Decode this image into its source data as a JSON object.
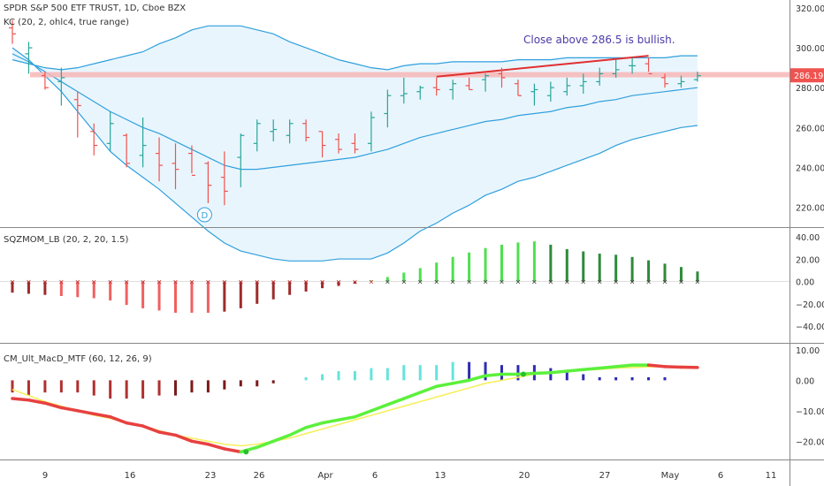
{
  "header": {
    "symbol_line": "SPDR S&P 500 ETF TRUST, 1D, Cboe BZX",
    "kc_line": "KC (20, 2, ohlc4, true range)",
    "sqz_line": "SQZMOM_LB (20, 2, 20, 1.5)",
    "macd_line": "CM_Ult_MacD_MTF (60, 12, 26, 9)"
  },
  "annotation": "Close above 286.5 is bullish.",
  "marker_label": "D",
  "current_price_label": "286.19",
  "colors": {
    "up": "#26a69a",
    "down": "#ef5350",
    "kc": "#2fa0dd",
    "kc_fill": "#e3f2fd",
    "resistance": "#f7b6b6",
    "trend": "#e03030",
    "sqz_green_bright": "#4ee04e",
    "sqz_green_dark": "#2e8b3a",
    "sqz_red_bright": "#f06060",
    "sqz_red_dark": "#9e2b2b",
    "macd_line_up": "#5cf03c",
    "macd_line_down": "#e84040",
    "signal": "#f6f060",
    "macd_hist_cyan": "#64e4dc",
    "macd_hist_navy": "#2d2db2",
    "macd_hist_red": "#b03030",
    "macd_hist_darkred": "#7a1a1a"
  },
  "x_axis": {
    "labels": [
      "9",
      "16",
      "23",
      "26",
      "Apr",
      "6",
      "13",
      "20",
      "27",
      "May",
      "6",
      "11"
    ]
  },
  "chart_data": [
    {
      "type": "ohlc",
      "title": "SPDR S&P 500 ETF TRUST, 1D, Cboe BZX",
      "ylim": [
        210,
        324
      ],
      "yticks": [
        220,
        240,
        260,
        280,
        300,
        320
      ],
      "dates": [
        "Mar 5",
        "Mar 6",
        "Mar 9",
        "Mar 10",
        "Mar 11",
        "Mar 12",
        "Mar 13",
        "Mar 16",
        "Mar 17",
        "Mar 18",
        "Mar 19",
        "Mar 20",
        "Mar 23",
        "Mar 24",
        "Mar 25",
        "Mar 26",
        "Mar 27",
        "Mar 30",
        "Mar 31",
        "Apr 1",
        "Apr 2",
        "Apr 3",
        "Apr 6",
        "Apr 7",
        "Apr 8",
        "Apr 9",
        "Apr 13",
        "Apr 14",
        "Apr 15",
        "Apr 16",
        "Apr 17",
        "Apr 20",
        "Apr 21",
        "Apr 22",
        "Apr 23",
        "Apr 24",
        "Apr 27",
        "Apr 28",
        "Apr 29",
        "Apr 30",
        "May 1",
        "May 4",
        "May 5"
      ],
      "open": [
        310,
        297,
        286,
        283,
        274,
        258,
        252,
        256,
        246,
        247,
        242,
        247,
        242,
        235,
        245,
        252,
        258,
        256,
        262,
        258,
        254,
        252,
        252,
        267,
        276,
        278,
        280,
        279,
        281,
        284,
        287,
        282,
        278,
        276,
        278,
        281,
        283,
        287,
        291,
        292,
        285,
        282,
        284
      ],
      "high": [
        314,
        303,
        288,
        290,
        278,
        262,
        268,
        257,
        265,
        255,
        252,
        251,
        243,
        248,
        257,
        264,
        264,
        264,
        264,
        258,
        257,
        257,
        268,
        279,
        285,
        281,
        285,
        284,
        285,
        287,
        290,
        284,
        282,
        283,
        285,
        287,
        290,
        294,
        295,
        295,
        287,
        286,
        288
      ],
      "low": [
        302,
        287,
        279,
        271,
        255,
        246,
        248,
        240,
        240,
        233,
        229,
        237,
        222,
        221,
        230,
        248,
        253,
        252,
        253,
        245,
        247,
        247,
        248,
        260,
        272,
        274,
        276,
        274,
        279,
        278,
        280,
        276,
        271,
        273,
        276,
        277,
        281,
        285,
        287,
        288,
        280,
        280,
        283
      ],
      "close": [
        307,
        300,
        280,
        285,
        271,
        251,
        262,
        242,
        251,
        241,
        239,
        236,
        231,
        228,
        256,
        262,
        259,
        262,
        255,
        251,
        249,
        249,
        265,
        276,
        277,
        280,
        279,
        282,
        279,
        286,
        285,
        276,
        279,
        280,
        281,
        283,
        287,
        289,
        291,
        287,
        282,
        283,
        286
      ],
      "keltner_upper": [
        294,
        292,
        290,
        289,
        290,
        292,
        294,
        296,
        298,
        302,
        305,
        309,
        311,
        311,
        311,
        309,
        307,
        303,
        300,
        297,
        294,
        292,
        290,
        289,
        291,
        292,
        292,
        293,
        293,
        293,
        293,
        294,
        294,
        294,
        295,
        295,
        295,
        295,
        295,
        295,
        295,
        296,
        296
      ],
      "keltner_middle": [
        297,
        293,
        288,
        283,
        278,
        273,
        268,
        264,
        260,
        257,
        253,
        249,
        245,
        241,
        239,
        239,
        240,
        241,
        242,
        243,
        244,
        245,
        247,
        249,
        252,
        255,
        257,
        259,
        261,
        263,
        264,
        266,
        267,
        268,
        270,
        271,
        273,
        274,
        276,
        277,
        278,
        279,
        280
      ],
      "keltner_lower": [
        300,
        294,
        286,
        278,
        268,
        258,
        248,
        241,
        235,
        229,
        222,
        215,
        208,
        202,
        198,
        196,
        194,
        193,
        193,
        193,
        194,
        194,
        194,
        197,
        202,
        208,
        212,
        217,
        221,
        226,
        229,
        233,
        235,
        238,
        241,
        244,
        247,
        251,
        254,
        256,
        258,
        260,
        261
      ],
      "resistance": 286.5,
      "trend_line": {
        "start": {
          "date": "Apr 13",
          "price": 285.5
        },
        "end": {
          "date": "Apr 30",
          "price": 296
        }
      },
      "current_price": 286.19,
      "event_marker": {
        "date": "Mar 23",
        "label": "D"
      }
    },
    {
      "type": "histogram",
      "title": "SQZMOM_LB (20, 2, 20, 1.5)",
      "ylim": [
        -55,
        48
      ],
      "yticks": [
        40,
        20,
        0,
        -20,
        -40
      ],
      "values": [
        -10,
        -11,
        -12,
        -13,
        -14,
        -15,
        -17,
        -21,
        -24,
        -26,
        -28,
        -28,
        -28,
        -27,
        -24,
        -20,
        -16,
        -12,
        -9,
        -6,
        -4,
        -2,
        1,
        4,
        8,
        12,
        17,
        22,
        26,
        30,
        33,
        35,
        36,
        33,
        29,
        27,
        25,
        24,
        22,
        19,
        16,
        13,
        9
      ],
      "shade": [
        "dark",
        "dark",
        "dark",
        "bright",
        "bright",
        "bright",
        "bright",
        "bright",
        "bright",
        "bright",
        "bright",
        "bright",
        "bright",
        "dark",
        "dark",
        "dark",
        "dark",
        "dark",
        "dark",
        "dark",
        "dark",
        "dark",
        "bright",
        "bright",
        "bright",
        "bright",
        "bright",
        "bright",
        "bright",
        "bright",
        "bright",
        "bright",
        "bright",
        "dark",
        "dark",
        "dark",
        "dark",
        "dark",
        "dark",
        "dark",
        "dark",
        "dark",
        "dark"
      ],
      "squeeze_dots": [
        "red",
        "red",
        "red",
        "red",
        "red",
        "red",
        "red",
        "red",
        "red",
        "red",
        "red",
        "red",
        "red",
        "red",
        "red",
        "red",
        "red",
        "red",
        "red",
        "red",
        "red",
        "red",
        "red",
        "black",
        "black",
        "black",
        "black",
        "black",
        "black",
        "black",
        "black",
        "black",
        "black",
        "black",
        "black",
        "black",
        "black",
        "black",
        "black",
        "black",
        "black",
        "black",
        "black"
      ]
    },
    {
      "type": "macd",
      "title": "CM_Ult_MacD_MTF (60, 12, 26, 9)",
      "ylim": [
        -26,
        12
      ],
      "yticks": [
        10,
        0,
        -10,
        -20
      ],
      "histogram": [
        -4,
        -5,
        -4,
        -4,
        -4,
        -5,
        -6,
        -6,
        -6,
        -5,
        -5,
        -4,
        -4,
        -3,
        -2,
        -2,
        -1,
        0,
        1,
        2,
        3,
        3,
        4,
        4,
        5,
        5,
        5,
        6,
        6,
        6,
        5,
        5,
        5,
        4,
        3,
        2,
        1,
        1,
        1,
        1,
        1,
        0,
        0
      ],
      "macd": [
        -6,
        -6.5,
        -7.5,
        -9,
        -10,
        -11,
        -12,
        -14,
        -15,
        -17,
        -18,
        -20,
        -21,
        -22.5,
        -23.5,
        -22,
        -20,
        -18,
        -15.5,
        -14,
        -13,
        -12,
        -10,
        -8,
        -6,
        -4,
        -2,
        -1,
        0,
        1.5,
        2,
        2,
        2.3,
        2.5,
        3,
        3.5,
        4,
        4.5,
        5,
        5,
        4.5,
        4.3,
        4.2
      ],
      "signal": [
        -3,
        -5,
        -7,
        -8.5,
        -10,
        -11.5,
        -12.5,
        -14,
        -15,
        -16.5,
        -18,
        -19,
        -20,
        -21,
        -21.5,
        -21,
        -20,
        -19,
        -17.5,
        -16,
        -14.5,
        -13,
        -11.5,
        -10,
        -8.5,
        -7,
        -5.5,
        -4,
        -2.5,
        -1,
        0,
        1,
        2,
        2.5,
        3,
        3.3,
        3.6,
        4,
        4.2,
        4.4,
        4.5,
        4.6,
        4.5
      ],
      "cross_markers": [
        {
          "index": 14,
          "color": "green"
        },
        {
          "index": 31,
          "color": "green"
        }
      ]
    }
  ]
}
